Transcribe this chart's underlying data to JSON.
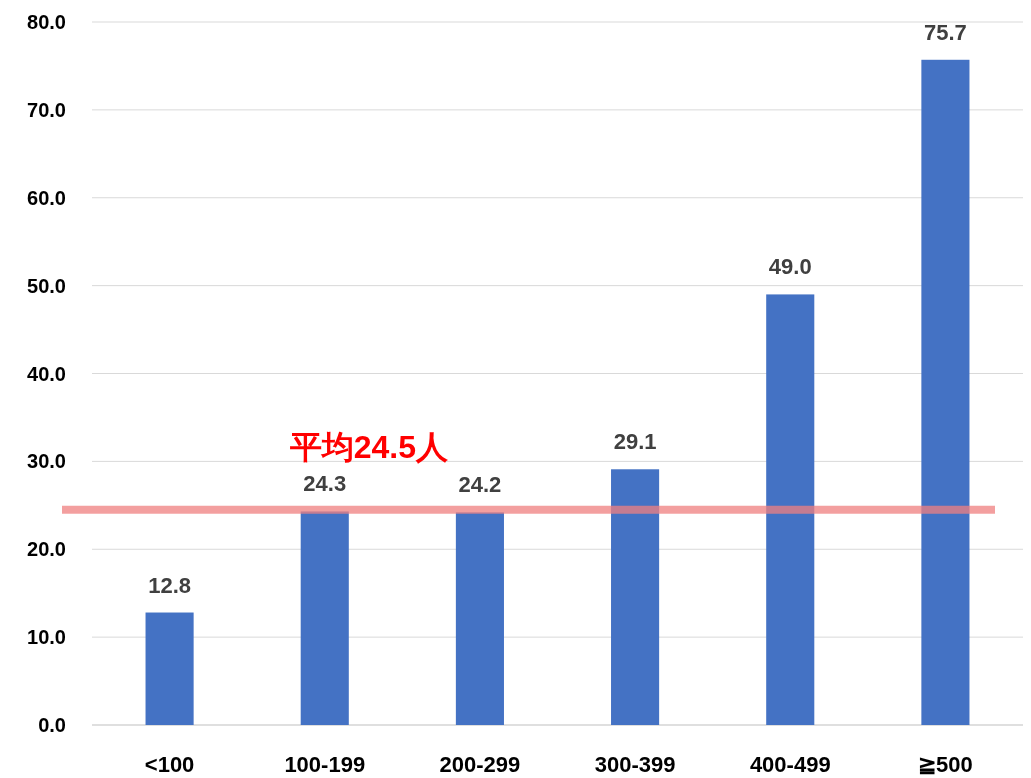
{
  "chart_data": {
    "type": "bar",
    "categories": [
      "<100",
      "100-199",
      "200-299",
      "300-399",
      "400-499",
      "≧500"
    ],
    "values": [
      12.8,
      24.3,
      24.2,
      29.1,
      49.0,
      75.7
    ],
    "color": "#4472c4",
    "value_labels": [
      "12.8",
      "24.3",
      "24.2",
      "29.1",
      "49.0",
      "75.7"
    ],
    "ylim": [
      0,
      80
    ],
    "yticks": [
      {
        "value": 0,
        "label": "0.0"
      },
      {
        "value": 10,
        "label": "10.0"
      },
      {
        "value": 20,
        "label": "20.0"
      },
      {
        "value": 30,
        "label": "30.0"
      },
      {
        "value": 40,
        "label": "40.0"
      },
      {
        "value": 50,
        "label": "50.0"
      },
      {
        "value": 60,
        "label": "60.0"
      },
      {
        "value": 70,
        "label": "70.0"
      },
      {
        "value": 80,
        "label": "80.0"
      }
    ],
    "grid": "y",
    "ref_lines": [
      {
        "axis": "y",
        "value": 24.5,
        "label": "平均24.5人",
        "color": "#f08080"
      }
    ]
  }
}
